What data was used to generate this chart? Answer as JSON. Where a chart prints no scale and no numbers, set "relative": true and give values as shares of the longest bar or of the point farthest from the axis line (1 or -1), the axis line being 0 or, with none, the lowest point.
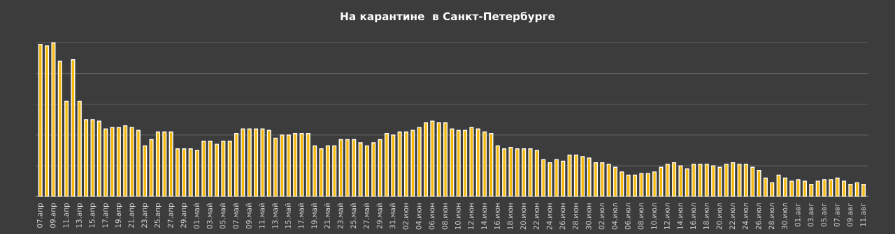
{
  "chart_data": {
    "type": "bar",
    "title": "На карантине  в Санкт-Петербурге",
    "relative": true,
    "grid": "y",
    "color": "#f5b90a",
    "categories": [
      "07.апр",
      null,
      "09.апр",
      null,
      "11.апр",
      null,
      "13.апр",
      null,
      "15.апр",
      null,
      "17.апр",
      null,
      "19.апр",
      null,
      "21.апр",
      null,
      "23.апр",
      null,
      "25.апр",
      null,
      "27.апр",
      null,
      "29.апр",
      null,
      "01.май",
      null,
      "03.май",
      null,
      "05.май",
      null,
      "07.май",
      null,
      "09.май",
      null,
      "11.май",
      null,
      "13.май",
      null,
      "15.май",
      null,
      "17.май",
      null,
      "19.май",
      null,
      "21.май",
      null,
      "23.май",
      null,
      "25.май",
      null,
      "27.май",
      null,
      "29.май",
      null,
      "31.май",
      null,
      "02.июн",
      null,
      "04.июн",
      null,
      "06.июн",
      null,
      "08.июн",
      null,
      "10.июн",
      null,
      "12.июн",
      null,
      "14.июн",
      null,
      "16.июн",
      null,
      "18.июн",
      null,
      "20.июн",
      null,
      "22.июн",
      null,
      "24.июн",
      null,
      "26.июн",
      null,
      "28.июн",
      null,
      "30.июн",
      null,
      "02.июл",
      null,
      "04.июл",
      null,
      "06.июл",
      null,
      "08.июл",
      null,
      "10.июл",
      null,
      "12.июл",
      null,
      "14.июл",
      null,
      "16.июл",
      null,
      "18.июл",
      null,
      "20.июл",
      null,
      "22.июл",
      null,
      "24.июл",
      null,
      "26.июл",
      null,
      "28.июл",
      null,
      "30.июл",
      null,
      "01.авг",
      null,
      "03.авг",
      null,
      "05.авг",
      null,
      "07.авг",
      null,
      "09.авг",
      null,
      "11.авг"
    ],
    "values": [
      0.99,
      0.98,
      1,
      0.88,
      0.62,
      0.89,
      0.62,
      0.5,
      0.5,
      0.49,
      0.44,
      0.45,
      0.45,
      0.46,
      0.45,
      0.43,
      0.33,
      0.37,
      0.42,
      0.42,
      0.42,
      0.31,
      0.31,
      0.31,
      0.3,
      0.36,
      0.36,
      0.34,
      0.36,
      0.36,
      0.41,
      0.44,
      0.44,
      0.44,
      0.44,
      0.43,
      0.38,
      0.4,
      0.4,
      0.41,
      0.41,
      0.41,
      0.33,
      0.31,
      0.33,
      0.33,
      0.37,
      0.37,
      0.37,
      0.35,
      0.33,
      0.35,
      0.37,
      0.41,
      0.4,
      0.42,
      0.42,
      0.43,
      0.45,
      0.48,
      0.49,
      0.48,
      0.48,
      0.44,
      0.43,
      0.43,
      0.45,
      0.44,
      0.42,
      0.41,
      0.33,
      0.31,
      0.32,
      0.31,
      0.31,
      0.31,
      0.3,
      0.24,
      0.22,
      0.24,
      0.23,
      0.27,
      0.27,
      0.26,
      0.25,
      0.22,
      0.22,
      0.21,
      0.19,
      0.16,
      0.14,
      0.14,
      0.15,
      0.15,
      0.16,
      0.19,
      0.21,
      0.22,
      0.2,
      0.18,
      0.21,
      0.21,
      0.21,
      0.2,
      0.19,
      0.21,
      0.22,
      0.21,
      0.21,
      0.19,
      0.17,
      0.12,
      0.09,
      0.14,
      0.12,
      0.1,
      0.11,
      0.1,
      0.08,
      0.1,
      0.11,
      0.11,
      0.12,
      0.1,
      0.08,
      0.09,
      0.08
    ]
  }
}
